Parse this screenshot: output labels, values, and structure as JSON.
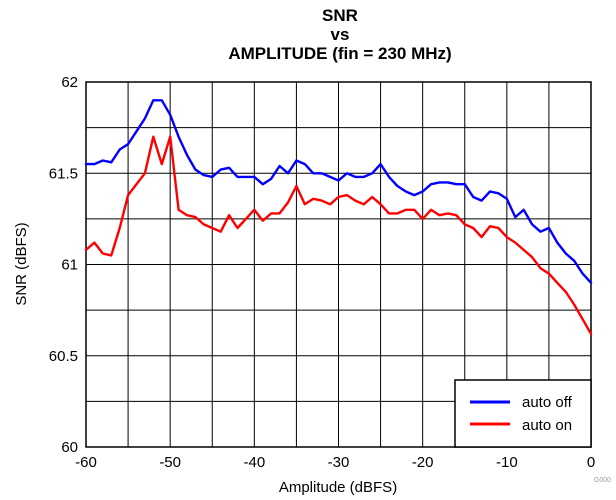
{
  "chart_data": {
    "type": "line",
    "title_lines": [
      "SNR",
      "vs",
      "AMPLITUDE (fin = 230 MHz)"
    ],
    "xlabel": "Amplitude (dBFS)",
    "ylabel": "SNR (dBFS)",
    "xlim": [
      -60,
      0
    ],
    "ylim": [
      60,
      62
    ],
    "xticks": [
      -60,
      -50,
      -40,
      -30,
      -20,
      -10,
      0
    ],
    "yticks": [
      60,
      60.5,
      61,
      61.5,
      62
    ],
    "xtick_labels": [
      "-60",
      "-50",
      "-40",
      "-30",
      "-20",
      "-10",
      "0"
    ],
    "ytick_labels": [
      "60",
      "60.5",
      "61",
      "61.5",
      "62"
    ],
    "grid": true,
    "legend_position": "bottom-right",
    "series": [
      {
        "name": "auto off",
        "color": "#0000ff",
        "x": [
          -60,
          -59,
          -58,
          -57,
          -56,
          -55,
          -54,
          -53,
          -52,
          -51,
          -50,
          -49,
          -48,
          -47,
          -46,
          -45,
          -44,
          -43,
          -42,
          -41,
          -40,
          -39,
          -38,
          -37,
          -36,
          -35,
          -34,
          -33,
          -32,
          -31,
          -30,
          -29,
          -28,
          -27,
          -26,
          -25,
          -24,
          -23,
          -22,
          -21,
          -20,
          -19,
          -18,
          -17,
          -16,
          -15,
          -14,
          -13,
          -12,
          -11,
          -10,
          -9,
          -8,
          -7,
          -6,
          -5,
          -4,
          -3,
          -2,
          -1,
          0
        ],
        "y": [
          61.55,
          61.55,
          61.57,
          61.56,
          61.63,
          61.66,
          61.73,
          61.8,
          61.9,
          61.9,
          61.82,
          61.7,
          61.6,
          61.52,
          61.49,
          61.48,
          61.52,
          61.53,
          61.48,
          61.48,
          61.48,
          61.44,
          61.47,
          61.54,
          61.5,
          61.57,
          61.55,
          61.5,
          61.5,
          61.48,
          61.46,
          61.5,
          61.48,
          61.48,
          61.5,
          61.55,
          61.48,
          61.43,
          61.4,
          61.38,
          61.4,
          61.44,
          61.45,
          61.45,
          61.44,
          61.44,
          61.37,
          61.35,
          61.4,
          61.39,
          61.36,
          61.26,
          61.3,
          61.22,
          61.18,
          61.2,
          61.12,
          61.06,
          61.02,
          60.95,
          60.9
        ]
      },
      {
        "name": "auto on",
        "color": "#ff0000",
        "x": [
          -60,
          -59,
          -58,
          -57,
          -56,
          -55,
          -54,
          -53,
          -52,
          -51,
          -50,
          -49,
          -48,
          -47,
          -46,
          -45,
          -44,
          -43,
          -42,
          -41,
          -40,
          -39,
          -38,
          -37,
          -36,
          -35,
          -34,
          -33,
          -32,
          -31,
          -30,
          -29,
          -28,
          -27,
          -26,
          -25,
          -24,
          -23,
          -22,
          -21,
          -20,
          -19,
          -18,
          -17,
          -16,
          -15,
          -14,
          -13,
          -12,
          -11,
          -10,
          -9,
          -8,
          -7,
          -6,
          -5,
          -4,
          -3,
          -2,
          -1,
          0
        ],
        "y": [
          61.08,
          61.12,
          61.06,
          61.05,
          61.2,
          61.38,
          61.44,
          61.5,
          61.7,
          61.55,
          61.7,
          61.3,
          61.27,
          61.26,
          61.22,
          61.2,
          61.18,
          61.27,
          61.2,
          61.25,
          61.3,
          61.24,
          61.28,
          61.28,
          61.34,
          61.43,
          61.33,
          61.36,
          61.35,
          61.33,
          61.37,
          61.38,
          61.35,
          61.33,
          61.37,
          61.33,
          61.28,
          61.28,
          61.3,
          61.3,
          61.25,
          61.3,
          61.27,
          61.28,
          61.27,
          61.22,
          61.2,
          61.15,
          61.21,
          61.2,
          61.15,
          61.12,
          61.08,
          61.04,
          60.98,
          60.95,
          60.9,
          60.85,
          60.78,
          60.7,
          60.62
        ]
      }
    ]
  },
  "figure_code": "G000"
}
